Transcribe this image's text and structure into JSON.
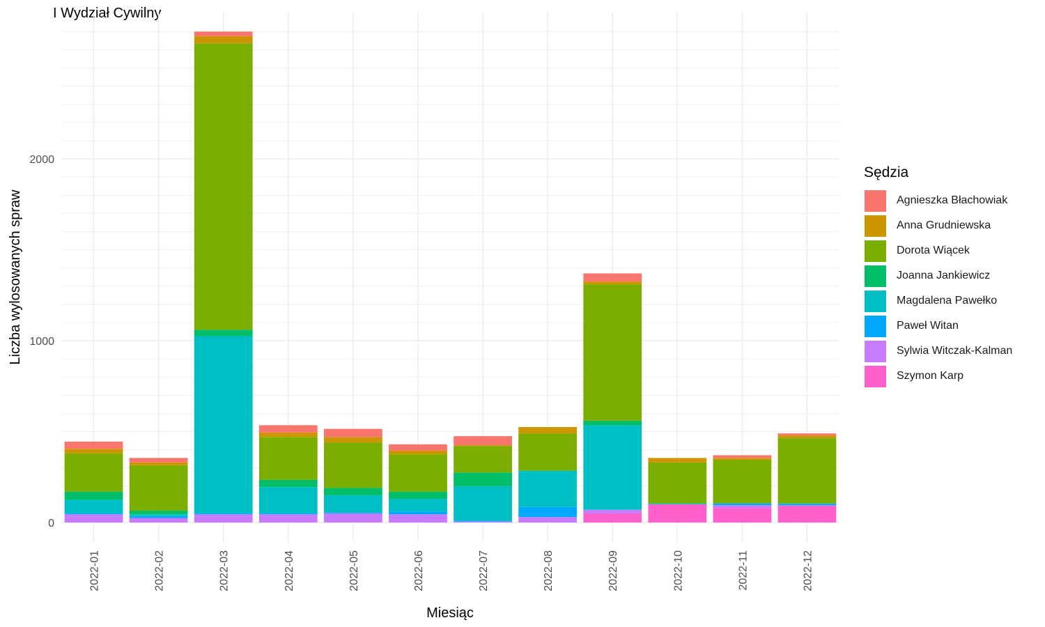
{
  "page": {
    "title": "I Wydział Cywilny"
  },
  "chart_data": {
    "type": "bar",
    "stacked": true,
    "title": "I Wydział Cywilny",
    "xlabel": "Miesiąc",
    "ylabel": "Liczba wylosowanych spraw",
    "ylim": [
      -100,
      2820
    ],
    "yticks": [
      0,
      1000,
      2000
    ],
    "grid": true,
    "legend_title": "Sędzia",
    "legend_position": "right",
    "categories": [
      "2022-01",
      "2022-02",
      "2022-03",
      "2022-04",
      "2022-05",
      "2022-06",
      "2022-07",
      "2022-08",
      "2022-09",
      "2022-10",
      "2022-11",
      "2022-12"
    ],
    "series": [
      {
        "name": "Szymon Karp",
        "color": "#FF61CC",
        "values": [
          0,
          0,
          0,
          0,
          0,
          0,
          0,
          0,
          50,
          100,
          80,
          90
        ]
      },
      {
        "name": "Sylwia Witczak-Kalman",
        "color": "#C77CFF",
        "values": [
          45,
          25,
          45,
          45,
          50,
          45,
          5,
          30,
          20,
          0,
          15,
          5
        ]
      },
      {
        "name": "Paweł Witan",
        "color": "#00A9FF",
        "values": [
          5,
          10,
          5,
          5,
          5,
          15,
          5,
          55,
          0,
          0,
          10,
          5
        ]
      },
      {
        "name": "Magdalena Pawełko",
        "color": "#00BFC4",
        "values": [
          75,
          10,
          975,
          145,
          95,
          70,
          190,
          200,
          465,
          5,
          0,
          5
        ]
      },
      {
        "name": "Joanna Jankiewicz",
        "color": "#00BE67",
        "values": [
          45,
          20,
          35,
          40,
          40,
          40,
          75,
          0,
          25,
          0,
          0,
          0
        ]
      },
      {
        "name": "Dorota Wiącek",
        "color": "#7CAE00",
        "values": [
          210,
          250,
          1575,
          235,
          250,
          205,
          145,
          205,
          750,
          225,
          240,
          360
        ]
      },
      {
        "name": "Anna Grudniewska",
        "color": "#CD9600",
        "values": [
          25,
          15,
          40,
          25,
          30,
          20,
          5,
          35,
          15,
          25,
          10,
          15
        ]
      },
      {
        "name": "Agnieszka Błachowiak",
        "color": "#F8766D",
        "values": [
          40,
          25,
          25,
          40,
          45,
          35,
          50,
          0,
          45,
          0,
          15,
          10
        ]
      }
    ]
  },
  "legend_order": [
    "Agnieszka Błachowiak",
    "Anna Grudniewska",
    "Dorota Wiącek",
    "Joanna Jankiewicz",
    "Magdalena Pawełko",
    "Paweł Witan",
    "Sylwia Witczak-Kalman",
    "Szymon Karp"
  ]
}
